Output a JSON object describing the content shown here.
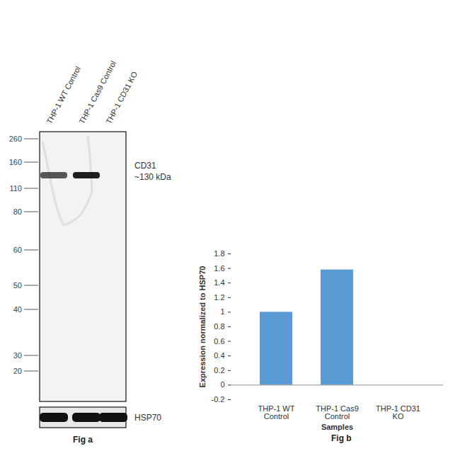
{
  "figure_a": {
    "type": "western_blot",
    "lanes": [
      "THP-1 WT Control",
      "THP-1 Cas9 Control",
      "THP-1 CD31 KO"
    ],
    "markers": [
      260,
      160,
      110,
      80,
      60,
      50,
      40,
      30,
      20
    ],
    "band_label": [
      "CD31",
      "~130 kDa"
    ],
    "loading_control": "HSP70",
    "caption": "Fig a"
  },
  "chart_data": {
    "type": "bar",
    "categories": [
      "THP-1 WT Control",
      "THP-1 Cas9 Control",
      "THP-1 CD31 KO"
    ],
    "values": [
      1,
      1.58,
      0
    ],
    "color": "#5b9bd5",
    "ylabel": "Expression normalized to HSP70",
    "xlabel": "Samples",
    "ylim": [
      -0.2,
      1.8
    ],
    "yticks": [
      -0.2,
      0,
      0.2,
      0.4,
      0.6,
      0.8,
      1,
      1.2,
      1.4,
      1.6,
      1.8
    ],
    "grid": false,
    "caption": "Fig b"
  }
}
